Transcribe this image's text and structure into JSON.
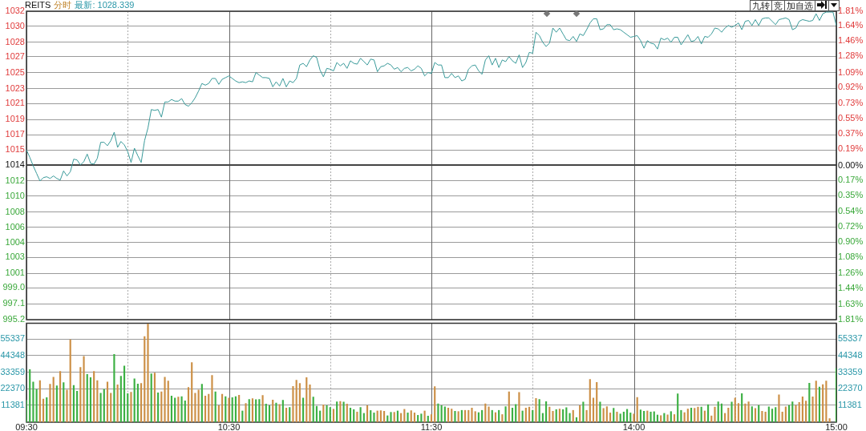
{
  "chart_data": [
    {
      "type": "line",
      "title": "REITS",
      "subtitle": "分时",
      "annotations": [
        "最新: 1028.339",
        "九转",
        "竞",
        "加自选"
      ],
      "categories": [
        null,
        null,
        null,
        null,
        null,
        null,
        null,
        null,
        null,
        null,
        null,
        null,
        null,
        null,
        null,
        null,
        null,
        null,
        null,
        null,
        null,
        null,
        null,
        null,
        null,
        null,
        null,
        null,
        null,
        null,
        null,
        null,
        null,
        null,
        null,
        null,
        null,
        null,
        null,
        null,
        null,
        null,
        null,
        null,
        null,
        null,
        null,
        null,
        null,
        null,
        null,
        null,
        null,
        null,
        null,
        null,
        null,
        null,
        null,
        null,
        null,
        null,
        null,
        null,
        null,
        null,
        null,
        null,
        null,
        null,
        null,
        null,
        null,
        null,
        null,
        null,
        null,
        null,
        null,
        null,
        null,
        null,
        null,
        null,
        null,
        null,
        null,
        null,
        null,
        null,
        null,
        null,
        null,
        null,
        null,
        null,
        null,
        null,
        null,
        null,
        null,
        null,
        null,
        null,
        null,
        null,
        null,
        null,
        null,
        null,
        null,
        null,
        null,
        null,
        null,
        null,
        null,
        null,
        null,
        null,
        null,
        null,
        null,
        null,
        null,
        null,
        null,
        null,
        null,
        null,
        null,
        null,
        null,
        null,
        null,
        null,
        null,
        null,
        null,
        null,
        null,
        null,
        null,
        null,
        null,
        null,
        null,
        null,
        null,
        null,
        null,
        null,
        null,
        null,
        null,
        null,
        null,
        null,
        null,
        null,
        null,
        null,
        null,
        null,
        null,
        null,
        null,
        null,
        null,
        null,
        null,
        null,
        null,
        null,
        null,
        null,
        null,
        null,
        null,
        null,
        null,
        null,
        null,
        null,
        null,
        null,
        null,
        null,
        null,
        null,
        null,
        null,
        null,
        null,
        null,
        null,
        null,
        null,
        null,
        null,
        null,
        null,
        null,
        null,
        null,
        null,
        null,
        null,
        null,
        null,
        null,
        null,
        null,
        null,
        null,
        null,
        null,
        null,
        null,
        null,
        null,
        null,
        null,
        null,
        null,
        null,
        null,
        null,
        null,
        null,
        null,
        null,
        null,
        null,
        null,
        null,
        null,
        null,
        null,
        null,
        null
      ],
      "series": [
        {
          "color": "#3a9a9a",
          "values": [
            1015.4,
            1014.5,
            1013.5,
            1012.6,
            1011.7,
            1012.1,
            1012.2,
            1012.0,
            1012.3,
            1012.0,
            1011.8,
            1012.9,
            1012.3,
            1012.8,
            1014.3,
            1014.2,
            1013.6,
            1014.0,
            1014.9,
            1013.8,
            1013.7,
            1014.4,
            1016.3,
            1016.3,
            1015.9,
            1016.5,
            1017.5,
            1015.7,
            1016.4,
            1016.0,
            1015.2,
            1013.9,
            1015.6,
            1014.7,
            1013.9,
            1016.5,
            1018.0,
            1020.2,
            1020.1,
            1020.2,
            1019.3,
            1021.1,
            1021.1,
            1021.4,
            1021.2,
            1021.2,
            1021.5,
            1020.8,
            1020.6,
            1021.0,
            1021.6,
            1022.4,
            1023.3,
            1023.1,
            1023.3,
            1023.9,
            1023.9,
            1023.2,
            1023.8,
            1024.0,
            1024.2,
            1023.9,
            1023.6,
            1023.4,
            1023.5,
            1023.4,
            1023.6,
            1023.5,
            1024.6,
            1024.3,
            1024.0,
            1024.0,
            1023.9,
            1022.9,
            1023.5,
            1023.0,
            1023.9,
            1022.9,
            1023.6,
            1023.4,
            1023.9,
            1025.5,
            1025.7,
            1025.3,
            1026.1,
            1026.6,
            1026.4,
            1024.9,
            1024.1,
            1025.1,
            1025.0,
            1024.8,
            1025.8,
            1025.4,
            1025.7,
            1025.1,
            1026.0,
            1025.7,
            1025.6,
            1026.3,
            1025.9,
            1025.5,
            1026.2,
            1026.1,
            1024.7,
            1025.3,
            1025.4,
            1025.7,
            1025.5,
            1025.0,
            1025.2,
            1024.7,
            1025.1,
            1025.2,
            1024.8,
            1025.0,
            1025.4,
            1025.1,
            1024.2,
            1024.6,
            1024.5,
            1025.8,
            1025.5,
            1025.5,
            1024.0,
            1024.0,
            1024.5,
            1024.0,
            1024.2,
            1023.6,
            1023.8,
            1025.0,
            1025.4,
            1025.5,
            1024.8,
            1024.4,
            1026.1,
            1026.6,
            1025.5,
            1026.3,
            1025.2,
            1026.1,
            1025.9,
            1026.5,
            1026.0,
            1025.7,
            1026.7,
            1025.2,
            1025.8,
            1027.0,
            1026.9,
            1029.4,
            1029.0,
            1028.2,
            1027.7,
            1028.1,
            1029.9,
            1029.4,
            1029.9,
            1029.2,
            1028.5,
            1028.4,
            1028.9,
            1028.3,
            1029.2,
            1029.0,
            1029.7,
            1030.5,
            1031.0,
            1031.0,
            1029.7,
            1029.8,
            1030.3,
            1030.3,
            1029.7,
            1029.8,
            1029.7,
            1029.4,
            1029.1,
            1028.8,
            1028.9,
            1029.0,
            1028.4,
            1027.5,
            1028.4,
            1028.1,
            1028.0,
            1027.4,
            1028.7,
            1028.5,
            1028.7,
            1028.2,
            1028.8,
            1028.8,
            1027.9,
            1028.5,
            1029.1,
            1028.3,
            1028.4,
            1028.9,
            1028.0,
            1028.9,
            1028.8,
            1029.2,
            1029.9,
            1029.8,
            1029.4,
            1029.9,
            1030.2,
            1030.0,
            1030.2,
            1030.5,
            1029.7,
            1030.7,
            1030.8,
            1030.2,
            1030.9,
            1030.2,
            1031.0,
            1031.1,
            1031.1,
            1030.7,
            1030.3,
            1030.9,
            1031.0,
            1031.1,
            1030.9,
            1029.7,
            1029.9,
            1030.7,
            1030.9,
            1030.8,
            1030.7,
            1030.8,
            1031.6,
            1030.8,
            1031.6,
            1031.8,
            1031.8,
            1031.8,
            1030.2
          ]
        }
      ],
      "ylim": [
        995.2,
        1031.9
      ],
      "yticks": [
        {
          "value": 1031.9,
          "label": "1032"
        },
        {
          "value": 1030.1,
          "label": "1030"
        },
        {
          "value": 1028.2,
          "label": "1028"
        },
        {
          "value": 1026.5,
          "label": "1027"
        },
        {
          "value": 1024.6,
          "label": "1025"
        },
        {
          "value": 1022.7,
          "label": "1023"
        },
        {
          "value": 1020.9,
          "label": "1021"
        },
        {
          "value": 1019.0,
          "label": "1019"
        },
        {
          "value": 1017.2,
          "label": "1017"
        },
        {
          "value": 1015.4,
          "label": "1015"
        },
        {
          "value": 1013.6,
          "label": "1014"
        },
        {
          "value": 1011.7,
          "label": "1012"
        },
        {
          "value": 1009.9,
          "label": "1010"
        },
        {
          "value": 1008.0,
          "label": "1008"
        },
        {
          "value": 1006.2,
          "label": "1006"
        },
        {
          "value": 1004.4,
          "label": "1004"
        },
        {
          "value": 1002.6,
          "label": "1003"
        },
        {
          "value": 1000.7,
          "label": "1001"
        },
        {
          "value": 999.0,
          "label": "999.0"
        },
        {
          "value": 997.1,
          "label": "997.1"
        },
        {
          "value": 995.2,
          "label": "995.2"
        }
      ],
      "y2lim": [
        -1.81,
        1.81
      ],
      "y2ticks": [
        {
          "value": 1.81,
          "label": "1.81%"
        },
        {
          "value": 1.64,
          "label": "1.64%"
        },
        {
          "value": 1.46,
          "label": "1.46%"
        },
        {
          "value": 1.28,
          "label": "1.28%"
        },
        {
          "value": 1.09,
          "label": "1.09%"
        },
        {
          "value": 0.92,
          "label": "0.92%"
        },
        {
          "value": 0.73,
          "label": "0.73%"
        },
        {
          "value": 0.55,
          "label": "0.55%"
        },
        {
          "value": 0.37,
          "label": "0.37%"
        },
        {
          "value": 0.19,
          "label": "0.19%"
        },
        {
          "value": 0,
          "label": "0.00%"
        },
        {
          "value": -0.17,
          "label": "0.17%"
        },
        {
          "value": -0.35,
          "label": "0.35%"
        },
        {
          "value": -0.54,
          "label": "0.54%"
        },
        {
          "value": -0.72,
          "label": "0.72%"
        },
        {
          "value": -0.9,
          "label": "0.90%"
        },
        {
          "value": -1.08,
          "label": "1.08%"
        },
        {
          "value": -1.26,
          "label": "1.26%"
        },
        {
          "value": -1.44,
          "label": "1.44%"
        },
        {
          "value": -1.63,
          "label": "1.63%"
        },
        {
          "value": -1.81,
          "label": "1.81%"
        }
      ],
      "ref_lines": [
        {
          "axis": "y",
          "value": 1013.6,
          "color": "#444444"
        }
      ],
      "grid": true,
      "legend": false,
      "marker": "none",
      "tick_labels": "y"
    },
    {
      "type": "bar",
      "categories": [
        "09:30",
        null,
        null,
        null,
        null,
        null,
        null,
        null,
        null,
        null,
        null,
        null,
        null,
        null,
        null,
        null,
        null,
        null,
        null,
        null,
        null,
        null,
        null,
        null,
        null,
        null,
        null,
        null,
        null,
        null,
        null,
        null,
        null,
        null,
        null,
        null,
        null,
        null,
        null,
        null,
        null,
        null,
        null,
        null,
        null,
        null,
        null,
        null,
        null,
        null,
        null,
        null,
        null,
        null,
        null,
        null,
        null,
        null,
        null,
        null,
        "10:30",
        null,
        null,
        null,
        null,
        null,
        null,
        null,
        null,
        null,
        null,
        null,
        null,
        null,
        null,
        null,
        null,
        null,
        null,
        null,
        null,
        null,
        null,
        null,
        null,
        null,
        null,
        null,
        null,
        null,
        null,
        null,
        null,
        null,
        null,
        null,
        null,
        null,
        null,
        null,
        null,
        null,
        null,
        null,
        null,
        null,
        null,
        null,
        null,
        null,
        null,
        null,
        null,
        null,
        null,
        null,
        null,
        null,
        null,
        null,
        "11:30",
        null,
        null,
        null,
        null,
        null,
        null,
        null,
        null,
        null,
        null,
        null,
        null,
        null,
        null,
        null,
        null,
        null,
        null,
        null,
        null,
        null,
        null,
        null,
        null,
        null,
        null,
        null,
        null,
        null,
        null,
        null,
        null,
        null,
        null,
        null,
        null,
        null,
        null,
        null,
        null,
        null,
        null,
        null,
        null,
        null,
        null,
        null,
        null,
        null,
        null,
        null,
        null,
        null,
        null,
        null,
        null,
        null,
        null,
        null,
        "14:00",
        null,
        null,
        null,
        null,
        null,
        null,
        null,
        null,
        null,
        null,
        null,
        null,
        null,
        null,
        null,
        null,
        null,
        null,
        null,
        null,
        null,
        null,
        null,
        null,
        null,
        null,
        null,
        null,
        null,
        null,
        null,
        null,
        null,
        null,
        null,
        null,
        null,
        null,
        null,
        null,
        null,
        null,
        null,
        null,
        null,
        null,
        null,
        null,
        null,
        null,
        null,
        null,
        null,
        null,
        null,
        null,
        null,
        null,
        null,
        "15:00"
      ],
      "values": [
        14600,
        35100,
        26800,
        21900,
        27700,
        15500,
        16400,
        25300,
        30000,
        24300,
        33900,
        26400,
        21400,
        55000,
        24600,
        20700,
        36600,
        43900,
        31900,
        29800,
        33900,
        27700,
        19300,
        21800,
        26800,
        19300,
        45300,
        25000,
        30700,
        37500,
        19100,
        20000,
        28900,
        25500,
        25900,
        57100,
        65500,
        32300,
        32800,
        19600,
        20300,
        30000,
        27500,
        17500,
        16100,
        16800,
        17100,
        14300,
        23200,
        39800,
        19300,
        21400,
        25300,
        17500,
        18600,
        31200,
        20300,
        11100,
        18700,
        17100,
        16100,
        16400,
        17100,
        18000,
        7500,
        12500,
        15200,
        15700,
        15000,
        15200,
        17800,
        12100,
        11100,
        14800,
        12800,
        11800,
        14600,
        9500,
        9800,
        23900,
        28000,
        25900,
        16100,
        29800,
        25000,
        16800,
        10700,
        7500,
        11600,
        11100,
        9800,
        8700,
        13600,
        13900,
        13400,
        12100,
        9500,
        8400,
        6800,
        9800,
        5900,
        11100,
        7800,
        6200,
        7500,
        7700,
        7300,
        4300,
        6600,
        6600,
        7500,
        5900,
        8600,
        6200,
        7700,
        6200,
        4600,
        5500,
        7500,
        4100,
        5100,
        23800,
        12300,
        11000,
        10300,
        9500,
        8800,
        7300,
        7100,
        7900,
        7900,
        7900,
        9500,
        7100,
        6400,
        7900,
        12300,
        10300,
        7900,
        6400,
        7900,
        5100,
        10400,
        20300,
        9500,
        11900,
        19800,
        7500,
        9500,
        10100,
        7900,
        15900,
        15200,
        5900,
        13700,
        10100,
        7300,
        8400,
        8800,
        8400,
        9700,
        5900,
        7900,
        3100,
        11000,
        13400,
        7900,
        28600,
        16100,
        26600,
        13400,
        9200,
        10400,
        6200,
        9300,
        6800,
        5500,
        6800,
        8600,
        6200,
        5500,
        16500,
        8200,
        7300,
        7500,
        6800,
        7000,
        4800,
        4400,
        5900,
        4900,
        7100,
        5100,
        18900,
        7900,
        6400,
        8800,
        9500,
        9300,
        10100,
        10100,
        7500,
        11700,
        4200,
        10100,
        13600,
        12300,
        5900,
        9500,
        13400,
        16100,
        12500,
        19100,
        12300,
        13600,
        10400,
        9200,
        11200,
        7300,
        6800,
        10300,
        8800,
        9900,
        18300,
        6800,
        10300,
        11200,
        13600,
        11200,
        13200,
        16900,
        14100,
        26000,
        16900,
        27500,
        23500,
        25100,
        27500,
        2400,
        null,
        35900
      ],
      "colors": [
        "#3cb043",
        "#3cb043",
        "#3cb043",
        "#3cb043",
        "#cc8f45",
        "#cc8f45",
        "#3cb043",
        "#cc8f45",
        "#cc8f45",
        "#3cb043",
        "#cc8f45",
        "#3cb043",
        "#cc8f45",
        "#cc8f45",
        "#3cb043",
        "#3cb043",
        "#cc8f45",
        "#cc8f45",
        "#3cb043",
        "#3cb043",
        "#cc8f45",
        "#cc8f45",
        "#3cb043",
        "#3cb043",
        "#cc8f45",
        "#cc8f45",
        "#3cb043",
        "#cc8f45",
        "#3cb043",
        "#3cb043",
        "#3cb043",
        "#cc8f45",
        "#3cb043",
        "#3cb043",
        "#cc8f45",
        "#cc8f45",
        "#cc8f45",
        "#3cb043",
        "#cc8f45",
        "#3cb043",
        "#cc8f45",
        "#cc8f45",
        "#cc8f45",
        "#3cb043",
        "#3cb043",
        "#cc8f45",
        "#3cb043",
        "#3cb043",
        "#cc8f45",
        "#cc8f45",
        "#cc8f45",
        "#cc8f45",
        "#3cb043",
        "#cc8f45",
        "#cc8f45",
        "#cc8f45",
        "#3cb043",
        "#cc8f45",
        "#cc8f45",
        "#3cb043",
        "#cc8f45",
        "#3cb043",
        "#3cb043",
        "#cc8f45",
        "#3cb043",
        "#cc8f45",
        "#3cb043",
        "#cc8f45",
        "#3cb043",
        "#3cb043",
        "#cc8f45",
        "#3cb043",
        "#3cb043",
        "#cc8f45",
        "#3cb043",
        "#cc8f45",
        "#3cb043",
        "#cc8f45",
        "#3cb043",
        "#cc8f45",
        "#cc8f45",
        "#cc8f45",
        "#3cb043",
        "#cc8f45",
        "#cc8f45",
        "#3cb043",
        "#3cb043",
        "#3cb043",
        "#cc8f45",
        "#3cb043",
        "#3cb043",
        "#cc8f45",
        "#3cb043",
        "#cc8f45",
        "#3cb043",
        "#cc8f45",
        "#3cb043",
        "#3cb043",
        "#cc8f45",
        "#3cb043",
        "#3cb043",
        "#cc8f45",
        "#3cb043",
        "#3cb043",
        "#cc8f45",
        "#cc8f45",
        "#cc8f45",
        "#3cb043",
        "#3cb043",
        "#cc8f45",
        "#3cb043",
        "#cc8f45",
        "#cc8f45",
        "#3cb043",
        "#cc8f45",
        "#cc8f45",
        "#3cb043",
        "#3cb043",
        "#cc8f45",
        "#3cb043",
        "#cc8f45",
        "#cc8f45",
        "#3cb043",
        "#3cb043",
        "#3cb043",
        "#cc8f45",
        "#cc8f45",
        "#3cb043",
        "#cc8f45",
        "#3cb043",
        "#cc8f45",
        "#cc8f45",
        "#cc8f45",
        "#cc8f45",
        "#3cb043",
        "#3cb043",
        "#cc8f45",
        "#cc8f45",
        "#3cb043",
        "#cc8f45",
        "#3cb043",
        "#cc8f45",
        "#3cb043",
        "#cc8f45",
        "#3cb043",
        "#3cb043",
        "#cc8f45",
        "#3cb043",
        "#cc8f45",
        "#cc8f45",
        "#3cb043",
        "#cc8f45",
        "#3cb043",
        "#3cb043",
        "#3cb043",
        "#cc8f45",
        "#cc8f45",
        "#3cb043",
        "#cc8f45",
        "#3cb043",
        "#3cb043",
        "#3cb043",
        "#cc8f45",
        "#3cb043",
        "#cc8f45",
        "#3cb043",
        "#cc8f45",
        "#cc8f45",
        "#cc8f45",
        "#cc8f45",
        "#3cb043",
        "#cc8f45",
        "#cc8f45",
        "#cc8f45",
        "#3cb043",
        "#cc8f45",
        "#3cb043",
        "#3cb043",
        "#3cb043",
        "#3cb043",
        "#cc8f45",
        "#cc8f45",
        "#3cb043",
        "#3cb043",
        "#cc8f45",
        "#3cb043",
        "#3cb043",
        "#3cb043",
        "#cc8f45",
        "#3cb043",
        "#cc8f45",
        "#3cb043",
        "#cc8f45",
        "#3cb043",
        "#3cb043",
        "#cc8f45",
        "#cc8f45",
        "#3cb043",
        "#cc8f45",
        "#cc8f45",
        "#3cb043",
        "#cc8f45",
        "#3cb043",
        "#cc8f45",
        "#cc8f45",
        "#3cb043",
        "#3cb043",
        "#cc8f45",
        "#cc8f45",
        "#3cb043",
        "#cc8f45",
        "#cc8f45",
        "#3cb043",
        "#cc8f45",
        "#cc8f45",
        "#3cb043",
        "#cc8f45",
        "#3cb043",
        "#cc8f45",
        "#cc8f45",
        "#3cb043",
        "#3cb043",
        "#3cb043",
        "#cc8f45",
        "#cc8f45",
        "#cc8f45",
        "#3cb043",
        "#3cb043",
        "#cc8f45",
        "#cc8f45",
        "#cc8f45",
        "#cc8f45",
        "#3cb043",
        "#cc8f45",
        "#cc8f45",
        "#3cb043",
        "#cc8f45",
        "#cc8f45",
        "#cc8f45",
        "#3cb043",
        "#3cb043"
      ],
      "ylim": [
        0,
        65934
      ],
      "yticks": [
        11381,
        22370,
        33359,
        44348,
        55337
      ],
      "y2lim": [
        0,
        65934
      ],
      "y2ticks": [
        11381,
        22370,
        33359,
        44348,
        55337
      ],
      "grid": true,
      "legend": false
    }
  ]
}
